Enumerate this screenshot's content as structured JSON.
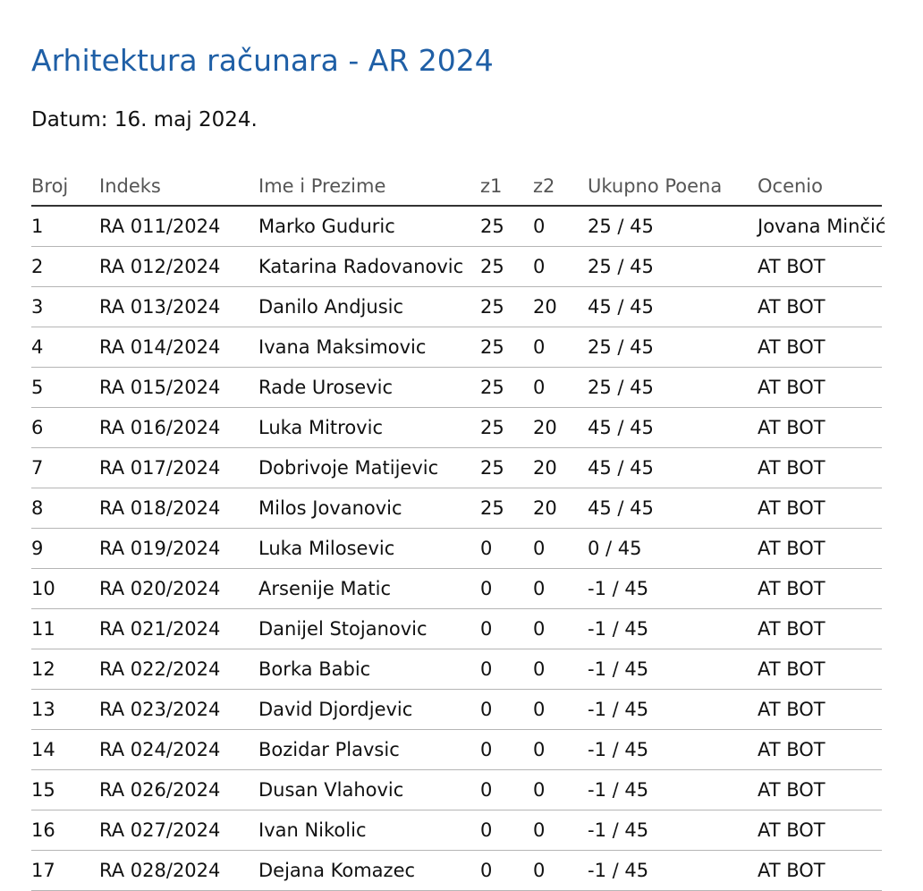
{
  "document": {
    "title": "Arhitektura računara - AR 2024",
    "date": "Datum: 16. maj 2024."
  },
  "table": {
    "headers": {
      "broj": "Broj",
      "indeks": "Indeks",
      "ime": "Ime i Prezime",
      "z1": "z1",
      "z2": "z2",
      "ukupno": "Ukupno Poena",
      "ocenio": "Ocenio"
    },
    "rows": [
      {
        "broj": "1",
        "indeks": "RA 011/2024",
        "ime": "Marko Guduric",
        "z1": "25",
        "z2": "0",
        "ukupno": "25 / 45",
        "ocenio": "Jovana Minčić"
      },
      {
        "broj": "2",
        "indeks": "RA 012/2024",
        "ime": "Katarina Radovanovic",
        "z1": "25",
        "z2": "0",
        "ukupno": "25 / 45",
        "ocenio": "AT BOT"
      },
      {
        "broj": "3",
        "indeks": "RA 013/2024",
        "ime": "Danilo Andjusic",
        "z1": "25",
        "z2": "20",
        "ukupno": "45 / 45",
        "ocenio": "AT BOT"
      },
      {
        "broj": "4",
        "indeks": "RA 014/2024",
        "ime": "Ivana Maksimovic",
        "z1": "25",
        "z2": "0",
        "ukupno": "25 / 45",
        "ocenio": "AT BOT"
      },
      {
        "broj": "5",
        "indeks": "RA 015/2024",
        "ime": "Rade Urosevic",
        "z1": "25",
        "z2": "0",
        "ukupno": "25 / 45",
        "ocenio": "AT BOT"
      },
      {
        "broj": "6",
        "indeks": "RA 016/2024",
        "ime": "Luka Mitrovic",
        "z1": "25",
        "z2": "20",
        "ukupno": "45 / 45",
        "ocenio": "AT BOT"
      },
      {
        "broj": "7",
        "indeks": "RA 017/2024",
        "ime": "Dobrivoje Matijevic",
        "z1": "25",
        "z2": "20",
        "ukupno": "45 / 45",
        "ocenio": "AT BOT"
      },
      {
        "broj": "8",
        "indeks": "RA 018/2024",
        "ime": "Milos Jovanovic",
        "z1": "25",
        "z2": "20",
        "ukupno": "45 / 45",
        "ocenio": "AT BOT"
      },
      {
        "broj": "9",
        "indeks": "RA 019/2024",
        "ime": "Luka Milosevic",
        "z1": "0",
        "z2": "0",
        "ukupno": "0 / 45",
        "ocenio": "AT BOT"
      },
      {
        "broj": "10",
        "indeks": "RA 020/2024",
        "ime": "Arsenije Matic",
        "z1": "0",
        "z2": "0",
        "ukupno": "-1 / 45",
        "ocenio": "AT BOT"
      },
      {
        "broj": "11",
        "indeks": "RA 021/2024",
        "ime": "Danijel Stojanovic",
        "z1": "0",
        "z2": "0",
        "ukupno": "-1 / 45",
        "ocenio": "AT BOT"
      },
      {
        "broj": "12",
        "indeks": "RA 022/2024",
        "ime": "Borka Babic",
        "z1": "0",
        "z2": "0",
        "ukupno": "-1 / 45",
        "ocenio": "AT BOT"
      },
      {
        "broj": "13",
        "indeks": "RA 023/2024",
        "ime": "David Djordjevic",
        "z1": "0",
        "z2": "0",
        "ukupno": "-1 / 45",
        "ocenio": "AT BOT"
      },
      {
        "broj": "14",
        "indeks": "RA 024/2024",
        "ime": "Bozidar Plavsic",
        "z1": "0",
        "z2": "0",
        "ukupno": "-1 / 45",
        "ocenio": "AT BOT"
      },
      {
        "broj": "15",
        "indeks": "RA 026/2024",
        "ime": "Dusan Vlahovic",
        "z1": "0",
        "z2": "0",
        "ukupno": "-1 / 45",
        "ocenio": "AT BOT"
      },
      {
        "broj": "16",
        "indeks": "RA 027/2024",
        "ime": "Ivan Nikolic",
        "z1": "0",
        "z2": "0",
        "ukupno": "-1 / 45",
        "ocenio": "AT BOT"
      },
      {
        "broj": "17",
        "indeks": "RA 028/2024",
        "ime": "Dejana Komazec",
        "z1": "0",
        "z2": "0",
        "ukupno": "-1 / 45",
        "ocenio": "AT BOT"
      }
    ]
  },
  "colors": {
    "title": "#1f5fa6",
    "header_text": "#555555",
    "row_divider": "#b5b5b5"
  }
}
